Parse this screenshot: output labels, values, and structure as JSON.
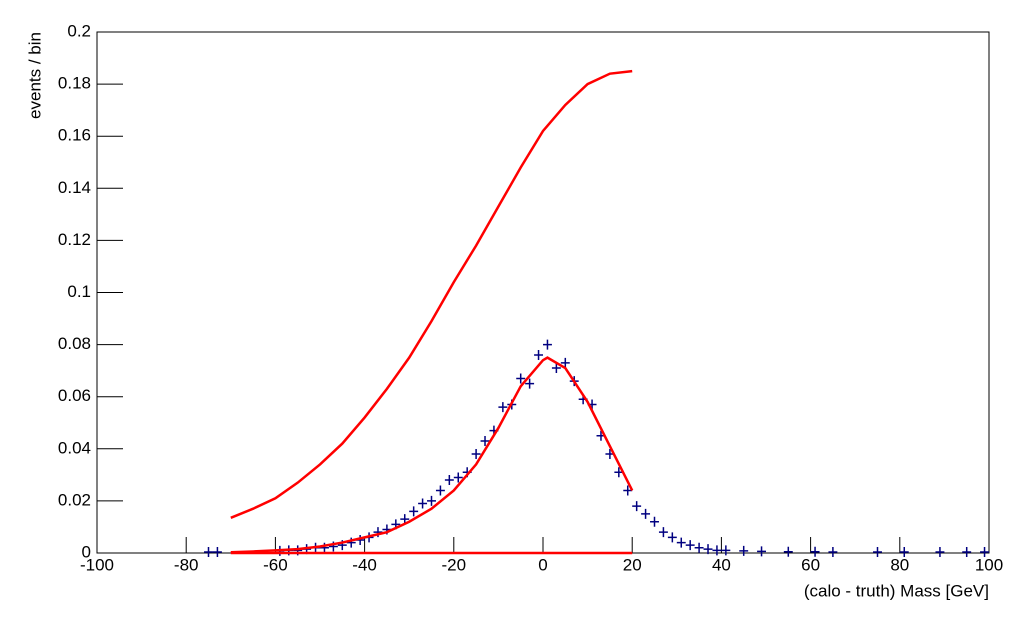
{
  "chart_data": {
    "type": "scatter",
    "x_label": "(calo - truth) Mass  [GeV]",
    "y_label": "events / bin",
    "xlim": [
      -100,
      100
    ],
    "xticks": [
      -100,
      -80,
      -60,
      -40,
      -20,
      0,
      20,
      40,
      60,
      80,
      100
    ],
    "ylim": [
      0,
      0.2
    ],
    "yticks": [
      0,
      0.02,
      0.04,
      0.06,
      0.08,
      0.1,
      0.12,
      0.14,
      0.16,
      0.18,
      0.2
    ],
    "series": [
      {
        "type": "points",
        "color": "#000080",
        "x": [
          -75,
          -73,
          -59,
          -57,
          -55,
          -53,
          -51,
          -49,
          -47,
          -45,
          -43,
          -41,
          -39,
          -37,
          -35,
          -33,
          -31,
          -29,
          -27,
          -25,
          -23,
          -21,
          -19,
          -17,
          -15,
          -13,
          -11,
          -9,
          -7,
          -5,
          -3,
          -1,
          1,
          3,
          5,
          7,
          9,
          11,
          13,
          15,
          17,
          19,
          21,
          23,
          25,
          27,
          29,
          31,
          33,
          35,
          37,
          39,
          41,
          45,
          49,
          55,
          61,
          65,
          75,
          81,
          89,
          95,
          99
        ],
        "values": [
          0.0004,
          0.0004,
          0.0008,
          0.001,
          0.001,
          0.0015,
          0.002,
          0.002,
          0.0025,
          0.003,
          0.004,
          0.005,
          0.006,
          0.008,
          0.009,
          0.011,
          0.013,
          0.016,
          0.019,
          0.02,
          0.024,
          0.028,
          0.029,
          0.031,
          0.038,
          0.043,
          0.047,
          0.056,
          0.057,
          0.067,
          0.065,
          0.076,
          0.08,
          0.071,
          0.073,
          0.066,
          0.059,
          0.057,
          0.045,
          0.038,
          0.031,
          0.024,
          0.018,
          0.015,
          0.012,
          0.008,
          0.006,
          0.004,
          0.003,
          0.002,
          0.0015,
          0.001,
          0.001,
          0.0008,
          0.0006,
          0.0005,
          0.0005,
          0.0004,
          0.0004,
          0.0004,
          0.0004,
          0.0004,
          0.0004
        ]
      },
      {
        "type": "line",
        "color": "#ff0000",
        "x": [
          -70,
          -65,
          -60,
          -55,
          -50,
          -45,
          -40,
          -35,
          -30,
          -25,
          -20,
          -15,
          -10,
          -5,
          0,
          1,
          5,
          10,
          15,
          20
        ],
        "values": [
          0.0003,
          0.0006,
          0.001,
          0.0015,
          0.0025,
          0.004,
          0.006,
          0.008,
          0.012,
          0.017,
          0.024,
          0.034,
          0.048,
          0.064,
          0.074,
          0.075,
          0.071,
          0.058,
          0.041,
          0.024
        ]
      },
      {
        "type": "line",
        "color": "#ff0000",
        "x": [
          -70,
          -65,
          -60,
          -55,
          -50,
          -45,
          -40,
          -35,
          -30,
          -25,
          -20,
          -15,
          -10,
          -5,
          0,
          5,
          10,
          15,
          20
        ],
        "values": [
          0.0135,
          0.017,
          0.021,
          0.027,
          0.034,
          0.042,
          0.052,
          0.063,
          0.075,
          0.089,
          0.104,
          0.118,
          0.133,
          0.148,
          0.162,
          0.172,
          0.18,
          0.184,
          0.185
        ]
      },
      {
        "type": "line",
        "color": "#ff0000",
        "x": [
          -70,
          20
        ],
        "values": [
          0,
          0
        ]
      }
    ]
  }
}
